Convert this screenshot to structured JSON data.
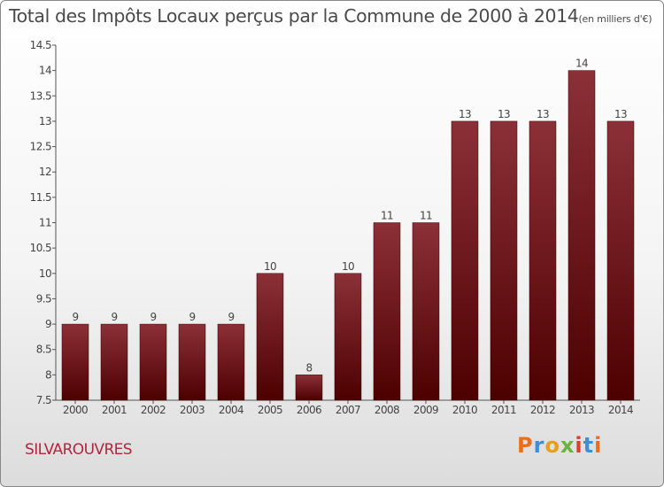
{
  "title": "Total des Impôts Locaux perçus par la Commune de 2000 à 2014",
  "title_unit": "(en milliers d'€)",
  "commune": "SILVAROUVRES",
  "brand": {
    "letters": [
      "P",
      "r",
      "o",
      "x",
      "i",
      "t",
      "i"
    ],
    "colors": [
      "#e8701c",
      "#3a8fd6",
      "#e8a01c",
      "#6bb33a",
      "#d6402a",
      "#3a8fd6",
      "#e8701c"
    ]
  },
  "colors": {
    "bar_top": "#8c3038",
    "bar_bottom": "#4d0000",
    "label": "#444444"
  },
  "chart_data": {
    "type": "bar",
    "categories": [
      "2000",
      "2001",
      "2002",
      "2003",
      "2004",
      "2005",
      "2006",
      "2007",
      "2008",
      "2009",
      "2010",
      "2011",
      "2012",
      "2013",
      "2014"
    ],
    "values": [
      9,
      9,
      9,
      9,
      9,
      10,
      8,
      10,
      11,
      11,
      13,
      13,
      13,
      14,
      13
    ],
    "ylim": [
      7.5,
      14.5
    ],
    "yticks": [
      "7.5",
      "8",
      "8.5",
      "9",
      "9.5",
      "10",
      "10.5",
      "11",
      "11.5",
      "12",
      "12.5",
      "13",
      "13.5",
      "14",
      "14.5"
    ],
    "grid": false
  }
}
